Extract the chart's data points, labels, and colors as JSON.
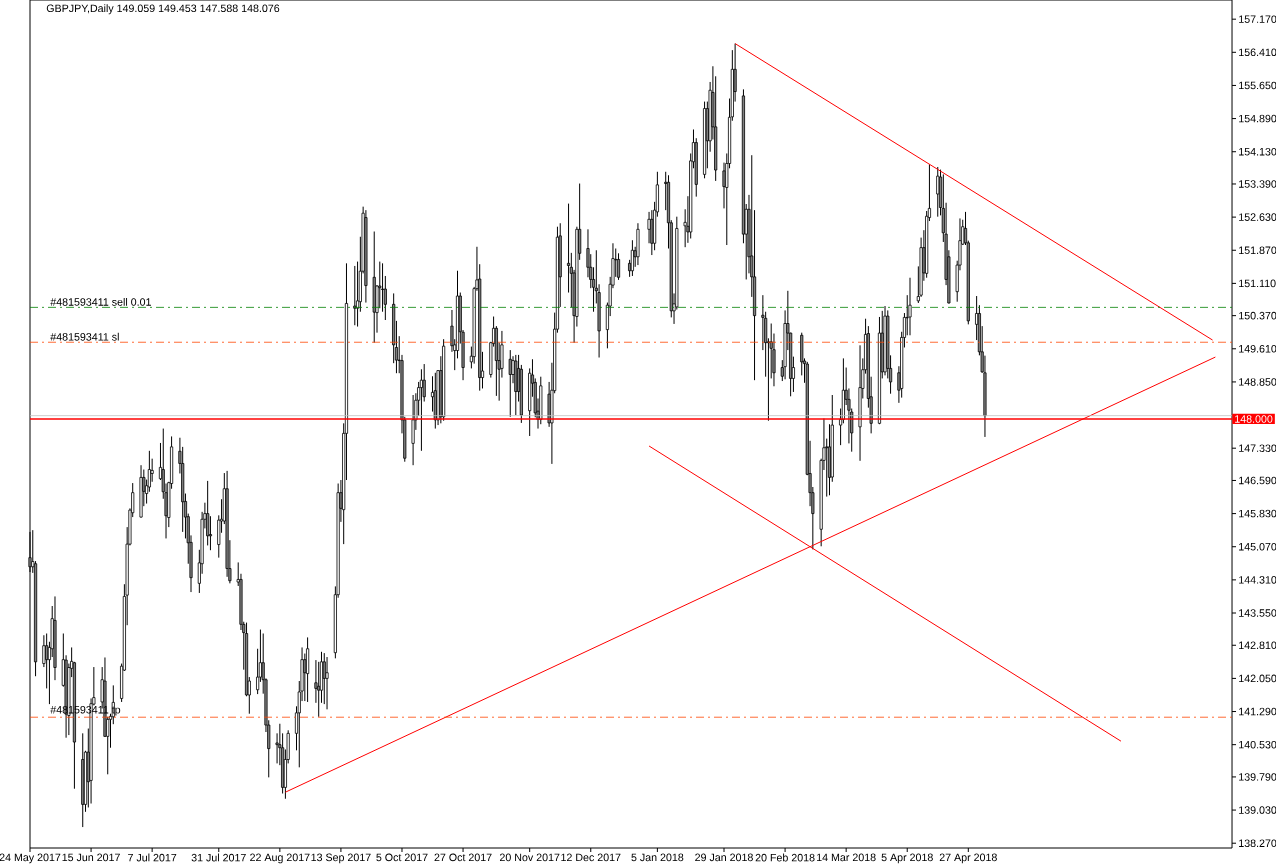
{
  "chart_data": {
    "type": "candlestick",
    "title": "GBPJPY,Daily  149.059 149.453 147.588 148.076",
    "x": [
      "2017-05-24",
      "2017-05-25",
      "2017-05-26",
      "2017-05-29",
      "2017-05-30",
      "2017-05-31",
      "2017-06-01",
      "2017-06-02",
      "2017-06-05",
      "2017-06-06",
      "2017-06-07",
      "2017-06-08",
      "2017-06-09",
      "2017-06-12",
      "2017-06-13",
      "2017-06-14",
      "2017-06-15",
      "2017-06-16",
      "2017-06-19",
      "2017-06-20",
      "2017-06-21",
      "2017-06-22",
      "2017-06-23",
      "2017-06-26",
      "2017-06-27",
      "2017-06-28",
      "2017-06-29",
      "2017-06-30",
      "2017-07-03",
      "2017-07-04",
      "2017-07-05",
      "2017-07-06",
      "2017-07-07",
      "2017-07-10",
      "2017-07-11",
      "2017-07-12",
      "2017-07-13",
      "2017-07-14",
      "2017-07-17",
      "2017-07-18",
      "2017-07-19",
      "2017-07-20",
      "2017-07-21",
      "2017-07-24",
      "2017-07-25",
      "2017-07-26",
      "2017-07-27",
      "2017-07-28",
      "2017-07-31",
      "2017-08-01",
      "2017-08-02",
      "2017-08-03",
      "2017-08-04",
      "2017-08-07",
      "2017-08-08",
      "2017-08-09",
      "2017-08-10",
      "2017-08-11",
      "2017-08-14",
      "2017-08-15",
      "2017-08-16",
      "2017-08-17",
      "2017-08-18",
      "2017-08-21",
      "2017-08-22",
      "2017-08-23",
      "2017-08-24",
      "2017-08-25",
      "2017-08-28",
      "2017-08-29",
      "2017-08-30",
      "2017-08-31",
      "2017-09-01",
      "2017-09-04",
      "2017-09-05",
      "2017-09-06",
      "2017-09-07",
      "2017-09-08",
      "2017-09-11",
      "2017-09-12",
      "2017-09-13",
      "2017-09-14",
      "2017-09-15",
      "2017-09-18",
      "2017-09-19",
      "2017-09-20",
      "2017-09-21",
      "2017-09-22",
      "2017-09-25",
      "2017-09-26",
      "2017-09-27",
      "2017-09-28",
      "2017-09-29",
      "2017-10-02",
      "2017-10-03",
      "2017-10-04",
      "2017-10-05",
      "2017-10-06",
      "2017-10-09",
      "2017-10-10",
      "2017-10-11",
      "2017-10-12",
      "2017-10-13",
      "2017-10-16",
      "2017-10-17",
      "2017-10-18",
      "2017-10-19",
      "2017-10-20",
      "2017-10-23",
      "2017-10-24",
      "2017-10-25",
      "2017-10-26",
      "2017-10-27",
      "2017-10-30",
      "2017-10-31",
      "2017-11-01",
      "2017-11-02",
      "2017-11-03",
      "2017-11-06",
      "2017-11-07",
      "2017-11-08",
      "2017-11-09",
      "2017-11-10",
      "2017-11-13",
      "2017-11-14",
      "2017-11-15",
      "2017-11-16",
      "2017-11-17",
      "2017-11-20",
      "2017-11-21",
      "2017-11-22",
      "2017-11-23",
      "2017-11-24",
      "2017-11-27",
      "2017-11-28",
      "2017-11-29",
      "2017-11-30",
      "2017-12-01",
      "2017-12-04",
      "2017-12-05",
      "2017-12-06",
      "2017-12-07",
      "2017-12-08",
      "2017-12-11",
      "2017-12-12",
      "2017-12-13",
      "2017-12-14",
      "2017-12-15",
      "2017-12-18",
      "2017-12-19",
      "2017-12-20",
      "2017-12-21",
      "2017-12-22",
      "2017-12-26",
      "2017-12-27",
      "2017-12-28",
      "2017-12-29",
      "2018-01-02",
      "2018-01-03",
      "2018-01-04",
      "2018-01-05",
      "2018-01-08",
      "2018-01-09",
      "2018-01-10",
      "2018-01-11",
      "2018-01-12",
      "2018-01-15",
      "2018-01-16",
      "2018-01-17",
      "2018-01-18",
      "2018-01-19",
      "2018-01-22",
      "2018-01-23",
      "2018-01-24",
      "2018-01-25",
      "2018-01-26",
      "2018-01-29",
      "2018-01-30",
      "2018-01-31",
      "2018-02-01",
      "2018-02-02",
      "2018-02-05",
      "2018-02-06",
      "2018-02-07",
      "2018-02-08",
      "2018-02-09",
      "2018-02-12",
      "2018-02-13",
      "2018-02-14",
      "2018-02-15",
      "2018-02-16",
      "2018-02-19",
      "2018-02-20",
      "2018-02-21",
      "2018-02-22",
      "2018-02-23",
      "2018-02-26",
      "2018-02-27",
      "2018-02-28",
      "2018-03-01",
      "2018-03-02",
      "2018-03-05",
      "2018-03-06",
      "2018-03-07",
      "2018-03-08",
      "2018-03-09",
      "2018-03-12",
      "2018-03-13",
      "2018-03-14",
      "2018-03-15",
      "2018-03-16",
      "2018-03-19",
      "2018-03-20",
      "2018-03-21",
      "2018-03-22",
      "2018-03-23",
      "2018-03-26",
      "2018-03-27",
      "2018-03-28",
      "2018-03-29",
      "2018-03-30",
      "2018-04-02",
      "2018-04-03",
      "2018-04-04",
      "2018-04-05",
      "2018-04-06",
      "2018-04-09",
      "2018-04-10",
      "2018-04-11",
      "2018-04-12",
      "2018-04-13",
      "2018-04-16",
      "2018-04-17",
      "2018-04-18",
      "2018-04-19",
      "2018-04-20",
      "2018-04-23",
      "2018-04-24",
      "2018-04-25",
      "2018-04-26",
      "2018-04-27",
      "2018-04-30",
      "2018-05-01",
      "2018-05-02",
      "2018-05-03"
    ],
    "ohlc": [
      [
        144.82,
        145.41,
        144.49,
        144.61
      ],
      [
        144.61,
        145.45,
        144.47,
        144.73
      ],
      [
        144.68,
        144.74,
        142.1,
        142.43
      ],
      [
        142.39,
        143.04,
        142.31,
        142.8
      ],
      [
        142.8,
        143.08,
        141.82,
        142.48
      ],
      [
        142.48,
        142.89,
        141.46,
        142.76
      ],
      [
        142.73,
        143.71,
        142.54,
        143.42
      ],
      [
        143.38,
        143.93,
        142.01,
        142.3
      ],
      [
        141.89,
        143.08,
        141.86,
        142.48
      ],
      [
        142.47,
        142.58,
        140.69,
        141.23
      ],
      [
        141.2,
        142.39,
        140.75,
        142.3
      ],
      [
        142.28,
        142.76,
        142.08,
        142.44
      ],
      [
        142.41,
        142.43,
        139.52,
        140.59
      ],
      [
        140.19,
        140.79,
        138.64,
        139.16
      ],
      [
        139.16,
        140.39,
        138.99,
        140.36
      ],
      [
        140.36,
        140.9,
        139.09,
        139.68
      ],
      [
        139.71,
        141.59,
        139.18,
        141.47
      ],
      [
        141.46,
        142.31,
        141.43,
        141.61
      ],
      [
        141.51,
        142.31,
        141.36,
        142.02
      ],
      [
        141.99,
        142.53,
        140.71,
        140.72
      ],
      [
        140.72,
        141.17,
        139.85,
        141.11
      ],
      [
        141.11,
        141.24,
        140.46,
        141.18
      ],
      [
        141.17,
        141.89,
        141.0,
        141.5
      ],
      [
        141.59,
        142.39,
        141.51,
        142.33
      ],
      [
        142.24,
        144.21,
        142.22,
        143.93
      ],
      [
        143.96,
        145.52,
        143.27,
        145.13
      ],
      [
        145.13,
        145.95,
        145.1,
        145.91
      ],
      [
        145.85,
        146.53,
        145.75,
        146.31
      ],
      [
        145.75,
        146.94,
        145.74,
        146.66
      ],
      [
        146.66,
        146.84,
        146.0,
        146.34
      ],
      [
        146.29,
        146.61,
        146.06,
        146.47
      ],
      [
        146.44,
        147.27,
        146.33,
        146.84
      ],
      [
        146.75,
        147.09,
        146.56,
        146.82
      ],
      [
        146.63,
        147.45,
        146.6,
        146.89
      ],
      [
        146.84,
        147.78,
        146.17,
        146.33
      ],
      [
        146.31,
        146.52,
        145.26,
        145.78
      ],
      [
        145.74,
        146.56,
        145.52,
        146.54
      ],
      [
        146.52,
        147.6,
        146.4,
        147.36
      ],
      [
        147.26,
        147.57,
        146.75,
        146.98
      ],
      [
        146.98,
        147.36,
        145.41,
        146.1
      ],
      [
        146.11,
        146.29,
        145.26,
        145.75
      ],
      [
        145.76,
        145.83,
        144.68,
        145.16
      ],
      [
        145.17,
        145.33,
        144.03,
        144.36
      ],
      [
        144.23,
        145.0,
        144.01,
        144.7
      ],
      [
        144.68,
        145.87,
        144.45,
        145.7
      ],
      [
        145.7,
        146.08,
        145.49,
        145.83
      ],
      [
        145.83,
        146.58,
        145.1,
        145.32
      ],
      [
        145.35,
        145.77,
        144.99,
        145.32
      ],
      [
        145.12,
        145.79,
        144.82,
        145.68
      ],
      [
        145.66,
        146.16,
        145.39,
        145.7
      ],
      [
        145.66,
        146.76,
        145.59,
        146.4
      ],
      [
        146.4,
        146.81,
        144.38,
        144.57
      ],
      [
        144.57,
        145.22,
        144.23,
        144.29
      ],
      [
        144.26,
        144.71,
        144.17,
        144.32
      ],
      [
        144.32,
        144.45,
        143.16,
        143.29
      ],
      [
        143.29,
        143.35,
        142.25,
        143.1
      ],
      [
        143.08,
        143.33,
        141.64,
        141.67
      ],
      [
        141.67,
        142.08,
        141.24,
        141.99
      ],
      [
        141.79,
        142.73,
        141.69,
        142.08
      ],
      [
        142.08,
        143.17,
        141.97,
        142.41
      ],
      [
        142.41,
        143.08,
        141.7,
        142.02
      ],
      [
        142.02,
        142.05,
        140.82,
        140.98
      ],
      [
        140.98,
        141.09,
        139.78,
        140.44
      ],
      [
        140.57,
        140.79,
        140.1,
        140.53
      ],
      [
        140.53,
        141.01,
        140.06,
        140.46
      ],
      [
        140.46,
        140.79,
        139.41,
        139.55
      ],
      [
        139.55,
        140.42,
        139.29,
        140.19
      ],
      [
        140.19,
        140.86,
        140.1,
        140.79
      ],
      [
        140.79,
        141.41,
        140.4,
        141.26
      ],
      [
        141.26,
        141.99,
        140.01,
        141.74
      ],
      [
        141.76,
        142.76,
        141.53,
        142.48
      ],
      [
        142.48,
        142.62,
        141.53,
        142.18
      ],
      [
        142.16,
        142.99,
        141.51,
        142.73
      ],
      [
        141.95,
        142.47,
        141.49,
        141.82
      ],
      [
        141.87,
        142.43,
        141.17,
        141.78
      ],
      [
        141.78,
        142.66,
        141.49,
        142.43
      ],
      [
        142.43,
        142.63,
        141.46,
        142.05
      ],
      [
        142.05,
        142.54,
        141.34,
        142.18
      ],
      [
        142.64,
        144.16,
        142.51,
        143.97
      ],
      [
        143.97,
        146.52,
        143.9,
        146.31
      ],
      [
        146.31,
        146.6,
        145.64,
        145.95
      ],
      [
        145.92,
        147.9,
        145.13,
        147.67
      ],
      [
        147.67,
        151.57,
        146.6,
        150.65
      ],
      [
        150.59,
        151.51,
        150.15,
        150.54
      ],
      [
        150.54,
        151.61,
        150.12,
        150.71
      ],
      [
        150.69,
        152.18,
        150.46,
        151.39
      ],
      [
        151.39,
        152.87,
        151.34,
        152.72
      ],
      [
        152.62,
        152.79,
        150.67,
        151.06
      ],
      [
        151.25,
        152.3,
        149.75,
        150.45
      ],
      [
        150.44,
        151.07,
        149.98,
        151.05
      ],
      [
        151.05,
        151.61,
        150.54,
        151.01
      ],
      [
        150.98,
        151.57,
        150.46,
        150.97
      ],
      [
        150.98,
        151.28,
        150.27,
        150.63
      ],
      [
        150.63,
        150.88,
        149.28,
        149.7
      ],
      [
        149.64,
        150.25,
        149.05,
        149.35
      ],
      [
        149.35,
        149.9,
        149.05,
        149.34
      ],
      [
        149.34,
        149.47,
        147.67,
        147.98
      ],
      [
        147.98,
        148.05,
        147.02,
        147.1
      ],
      [
        147.44,
        148.55,
        146.94,
        147.98
      ],
      [
        147.98,
        148.59,
        147.75,
        148.43
      ],
      [
        148.43,
        148.85,
        148.07,
        148.72
      ],
      [
        148.72,
        149.14,
        147.27,
        148.89
      ],
      [
        148.89,
        149.26,
        148.4,
        148.51
      ],
      [
        148.51,
        148.98,
        148.17,
        148.61
      ],
      [
        148.65,
        149.06,
        147.78,
        147.98
      ],
      [
        147.98,
        149.12,
        147.86,
        149.11
      ],
      [
        149.11,
        149.44,
        147.9,
        148.05
      ],
      [
        148.05,
        149.83,
        147.96,
        149.67
      ],
      [
        150.13,
        150.5,
        149.54,
        149.68
      ],
      [
        149.57,
        149.83,
        149.12,
        149.7
      ],
      [
        149.57,
        151.4,
        149.39,
        150.82
      ],
      [
        150.82,
        150.9,
        149.73,
        150.0
      ],
      [
        149.99,
        150.04,
        148.89,
        149.18
      ],
      [
        149.31,
        149.66,
        149.16,
        149.44
      ],
      [
        149.43,
        151.03,
        149.27,
        150.99
      ],
      [
        150.99,
        151.95,
        150.94,
        151.19
      ],
      [
        151.21,
        151.55,
        148.65,
        148.95
      ],
      [
        148.95,
        149.54,
        148.7,
        149.1
      ],
      [
        149.02,
        149.77,
        148.95,
        149.75
      ],
      [
        149.73,
        150.35,
        149.66,
        150.08
      ],
      [
        150.08,
        150.13,
        148.53,
        149.34
      ],
      [
        149.34,
        149.75,
        148.42,
        149.14
      ],
      [
        149.16,
        150.02,
        148.95,
        149.7
      ],
      [
        149.37,
        149.58,
        148.05,
        149.02
      ],
      [
        149.02,
        149.44,
        148.82,
        149.34
      ],
      [
        149.33,
        149.47,
        148.09,
        148.63
      ],
      [
        149.16,
        149.47,
        148.4,
        148.63
      ],
      [
        149.14,
        149.24,
        147.91,
        148.09
      ],
      [
        148.19,
        149.16,
        147.61,
        149.05
      ],
      [
        149.01,
        149.37,
        148.51,
        148.82
      ],
      [
        148.84,
        148.93,
        148.04,
        148.14
      ],
      [
        148.18,
        148.47,
        147.78,
        147.99
      ],
      [
        147.99,
        148.97,
        147.88,
        148.76
      ],
      [
        148.57,
        148.85,
        147.82,
        147.91
      ],
      [
        147.91,
        149.29,
        146.97,
        148.66
      ],
      [
        148.65,
        150.44,
        148.59,
        150.06
      ],
      [
        150.06,
        152.41,
        149.98,
        152.17
      ],
      [
        152.2,
        152.49,
        150.57,
        151.26
      ],
      [
        151.57,
        152.94,
        150.9,
        151.52
      ],
      [
        151.48,
        151.81,
        150.56,
        151.34
      ],
      [
        151.35,
        151.42,
        149.75,
        150.37
      ],
      [
        150.35,
        152.41,
        150.12,
        152.35
      ],
      [
        152.35,
        153.4,
        151.65,
        151.8
      ],
      [
        151.91,
        152.35,
        151.25,
        151.48
      ],
      [
        151.48,
        151.78,
        151.0,
        151.2
      ],
      [
        151.2,
        151.48,
        150.46,
        151.02
      ],
      [
        151.0,
        151.87,
        150.65,
        150.94
      ],
      [
        150.9,
        151.09,
        149.41,
        150.02
      ],
      [
        150.05,
        150.67,
        149.62,
        150.61
      ],
      [
        150.59,
        151.26,
        150.36,
        151.09
      ],
      [
        151.07,
        152.03,
        151.0,
        151.68
      ],
      [
        151.65,
        151.91,
        151.26,
        151.66
      ],
      [
        151.66,
        151.8,
        151.19,
        151.25
      ],
      [
        151.57,
        151.65,
        151.26,
        151.4
      ],
      [
        151.4,
        152.1,
        151.28,
        151.87
      ],
      [
        151.86,
        151.95,
        151.49,
        151.72
      ],
      [
        151.72,
        152.49,
        151.53,
        152.35
      ],
      [
        152.35,
        152.75,
        152.03,
        152.58
      ],
      [
        152.58,
        152.79,
        151.76,
        152.03
      ],
      [
        152.03,
        152.98,
        151.87,
        152.79
      ],
      [
        152.75,
        153.67,
        152.64,
        153.37
      ],
      [
        153.43,
        153.67,
        152.79,
        153.4
      ],
      [
        153.43,
        153.59,
        151.91,
        152.5
      ],
      [
        152.5,
        152.56,
        150.33,
        150.48
      ],
      [
        150.48,
        150.88,
        150.18,
        150.64
      ],
      [
        150.57,
        152.64,
        150.51,
        152.37
      ],
      [
        152.43,
        152.81,
        151.94,
        152.51
      ],
      [
        152.42,
        153.11,
        152.04,
        152.29
      ],
      [
        152.29,
        154.09,
        152.14,
        153.92
      ],
      [
        153.9,
        154.64,
        153.75,
        154.34
      ],
      [
        154.34,
        154.44,
        153.1,
        153.38
      ],
      [
        153.61,
        155.28,
        153.52,
        155.12
      ],
      [
        155.12,
        155.28,
        153.75,
        154.38
      ],
      [
        154.38,
        155.73,
        154.13,
        155.54
      ],
      [
        155.49,
        156.09,
        154.41,
        154.7
      ],
      [
        154.7,
        155.86,
        153.46,
        153.71
      ],
      [
        153.69,
        153.88,
        152.83,
        153.33
      ],
      [
        153.31,
        154.09,
        151.99,
        153.86
      ],
      [
        153.86,
        155.35,
        153.75,
        154.92
      ],
      [
        154.93,
        156.46,
        154.84,
        156.02
      ],
      [
        156.02,
        156.61,
        155.28,
        155.51
      ],
      [
        155.41,
        155.56,
        152.03,
        152.24
      ],
      [
        152.24,
        152.93,
        151.2,
        152.81
      ],
      [
        152.81,
        153.14,
        151.34,
        151.72
      ],
      [
        151.74,
        154.05,
        150.8,
        151.26
      ],
      [
        151.26,
        152.79,
        148.89,
        150.37
      ],
      [
        150.38,
        150.84,
        149.58,
        150.33
      ],
      [
        150.31,
        150.46,
        148.97,
        149.75
      ],
      [
        149.77,
        149.85,
        147.96,
        149.75
      ],
      [
        149.77,
        150.19,
        148.93,
        149.62
      ],
      [
        149.59,
        149.96,
        148.75,
        149.06
      ],
      [
        149.18,
        149.35,
        148.87,
        148.98
      ],
      [
        149.2,
        150.49,
        148.91,
        150.19
      ],
      [
        150.19,
        150.94,
        149.58,
        149.97
      ],
      [
        149.97,
        149.98,
        148.52,
        148.93
      ],
      [
        148.93,
        149.43,
        148.62,
        149.18
      ],
      [
        149.92,
        149.98,
        149.0,
        149.31
      ],
      [
        149.33,
        149.39,
        148.83,
        149.27
      ],
      [
        149.26,
        149.31,
        146.71,
        146.73
      ],
      [
        146.75,
        147.5,
        146.0,
        146.31
      ],
      [
        146.31,
        146.44,
        145.01,
        145.83
      ],
      [
        145.47,
        147.09,
        145.08,
        147.05
      ],
      [
        147.05,
        148.01,
        146.83,
        147.34
      ],
      [
        147.36,
        147.55,
        146.22,
        147.34
      ],
      [
        147.36,
        147.88,
        146.25,
        146.66
      ],
      [
        146.67,
        148.55,
        146.56,
        147.86
      ],
      [
        147.86,
        148.24,
        147.4,
        147.99
      ],
      [
        147.99,
        149.39,
        147.9,
        148.66
      ],
      [
        148.66,
        149.18,
        148.32,
        148.45
      ],
      [
        148.45,
        148.7,
        147.44,
        148.2
      ],
      [
        148.16,
        148.24,
        147.25,
        147.68
      ],
      [
        147.82,
        149.69,
        147.04,
        148.72
      ],
      [
        148.7,
        149.39,
        148.47,
        149.13
      ],
      [
        149.13,
        150.3,
        149.04,
        149.94
      ],
      [
        149.96,
        150.13,
        148.26,
        148.47
      ],
      [
        148.51,
        148.97,
        147.67,
        147.9
      ],
      [
        147.9,
        150.34,
        147.88,
        149.97
      ],
      [
        149.97,
        150.48,
        148.93,
        149.08
      ],
      [
        149.08,
        150.59,
        149.0,
        150.36
      ],
      [
        150.36,
        150.49,
        148.93,
        149.16
      ],
      [
        149.16,
        149.46,
        148.58,
        148.85
      ],
      [
        149.06,
        149.21,
        148.37,
        148.66
      ],
      [
        148.7,
        150.0,
        148.49,
        149.87
      ],
      [
        149.87,
        150.43,
        149.64,
        150.33
      ],
      [
        150.32,
        150.84,
        149.92,
        150.33
      ],
      [
        150.34,
        151.24,
        149.92,
        150.61
      ],
      [
        150.71,
        151.5,
        150.66,
        150.81
      ],
      [
        150.84,
        152.16,
        150.8,
        151.93
      ],
      [
        151.93,
        152.33,
        151.17,
        151.35
      ],
      [
        151.34,
        152.77,
        151.24,
        152.65
      ],
      [
        152.62,
        153.84,
        152.54,
        152.83
      ],
      [
        153.16,
        153.78,
        152.64,
        153.57
      ],
      [
        153.55,
        153.72,
        152.67,
        152.85
      ],
      [
        152.83,
        153.61,
        152.06,
        152.27
      ],
      [
        152.24,
        152.96,
        151.07,
        151.2
      ],
      [
        151.72,
        151.87,
        150.65,
        150.66
      ],
      [
        150.92,
        151.63,
        150.69,
        151.53
      ],
      [
        151.53,
        152.6,
        151.41,
        152.09
      ],
      [
        152.01,
        152.57,
        151.99,
        152.41
      ],
      [
        152.37,
        152.75,
        151.99,
        152.04
      ],
      [
        152.04,
        152.09,
        150.17,
        150.25
      ],
      [
        150.17,
        150.82,
        149.81,
        150.42
      ],
      [
        150.42,
        150.61,
        149.46,
        149.54
      ],
      [
        149.54,
        150.13,
        149.06,
        149.08
      ],
      [
        149.059,
        149.453,
        147.588,
        148.076
      ]
    ],
    "series": [
      {
        "type": "line",
        "color": "#ff0000",
        "x": [
          "2018-02-02",
          "2018-07-24"
        ],
        "values": [
          156.61,
          149.81
        ]
      },
      {
        "type": "line",
        "color": "#ff0000",
        "x": [
          "2017-08-24",
          "2018-07-25"
        ],
        "values": [
          139.44,
          149.42
        ]
      },
      {
        "type": "line",
        "color": "#ff0000",
        "x": [
          "2018-01-02",
          "2018-06-21"
        ],
        "values": [
          147.38,
          140.61
        ]
      }
    ],
    "ref_lines": [
      {
        "axis": "y",
        "value": 150.56,
        "label": "#481593411 sell 0.01",
        "color": "#008000",
        "line_style": "dashdot"
      },
      {
        "axis": "y",
        "value": 149.76,
        "label": "#481593411 sl",
        "color": "#ff4500",
        "line_style": "dashdot"
      },
      {
        "axis": "y",
        "value": 141.16,
        "label": "#481593411 tp",
        "color": "#ff4500",
        "line_style": "dashdot"
      },
      {
        "axis": "y",
        "value": 148.076,
        "color": "#c0c0c0",
        "line_style": "solid"
      },
      {
        "axis": "y",
        "value": 148.0,
        "label": "148.000",
        "color": "#ff0000",
        "line_style": "solid"
      }
    ],
    "xlim": [
      "2017-05-24",
      "2018-07-31"
    ],
    "xticks": [
      {
        "value": "2017-05-24",
        "label": "24 May 2017"
      },
      {
        "value": "2017-06-15",
        "label": "15 Jun 2017"
      },
      {
        "value": "2017-07-07",
        "label": "7 Jul 2017"
      },
      {
        "value": "2017-07-31",
        "label": "31 Jul 2017"
      },
      {
        "value": "2017-08-22",
        "label": "22 Aug 2017"
      },
      {
        "value": "2017-09-13",
        "label": "13 Sep 2017"
      },
      {
        "value": "2017-10-05",
        "label": "5 Oct 2017"
      },
      {
        "value": "2017-10-27",
        "label": "27 Oct 2017"
      },
      {
        "value": "2017-11-20",
        "label": "20 Nov 2017"
      },
      {
        "value": "2017-12-12",
        "label": "12 Dec 2017"
      },
      {
        "value": "2018-01-05",
        "label": "5 Jan 2018"
      },
      {
        "value": "2018-01-29",
        "label": "29 Jan 2018"
      },
      {
        "value": "2018-02-20",
        "label": "20 Feb 2018"
      },
      {
        "value": "2018-03-14",
        "label": "14 Mar 2018"
      },
      {
        "value": "2018-04-05",
        "label": "5 Apr 2018"
      },
      {
        "value": "2018-04-27",
        "label": "27 Apr 2018"
      }
    ],
    "ylim": [
      138.16,
      157.61
    ],
    "yticks": [
      {
        "value": 138.27,
        "label": "138.270"
      },
      {
        "value": 139.03,
        "label": "139.030"
      },
      {
        "value": 139.79,
        "label": "139.790"
      },
      {
        "value": 140.53,
        "label": "140.530"
      },
      {
        "value": 141.29,
        "label": "141.290"
      },
      {
        "value": 142.05,
        "label": "142.050"
      },
      {
        "value": 142.81,
        "label": "142.810"
      },
      {
        "value": 143.55,
        "label": "143.550"
      },
      {
        "value": 144.31,
        "label": "144.310"
      },
      {
        "value": 145.07,
        "label": "145.070"
      },
      {
        "value": 145.83,
        "label": "145.830"
      },
      {
        "value": 146.59,
        "label": "146.590"
      },
      {
        "value": 147.33,
        "label": "147.330"
      },
      {
        "value": 148.85,
        "label": "148.850"
      },
      {
        "value": 149.61,
        "label": "149.610"
      },
      {
        "value": 150.37,
        "label": "150.370"
      },
      {
        "value": 151.11,
        "label": "151.110"
      },
      {
        "value": 151.87,
        "label": "151.870"
      },
      {
        "value": 152.63,
        "label": "152.630"
      },
      {
        "value": 153.39,
        "label": "153.390"
      },
      {
        "value": 154.13,
        "label": "154.130"
      },
      {
        "value": 154.89,
        "label": "154.890"
      },
      {
        "value": 155.65,
        "label": "155.650"
      },
      {
        "value": 156.41,
        "label": "156.410"
      },
      {
        "value": 157.17,
        "label": "157.170"
      }
    ]
  }
}
